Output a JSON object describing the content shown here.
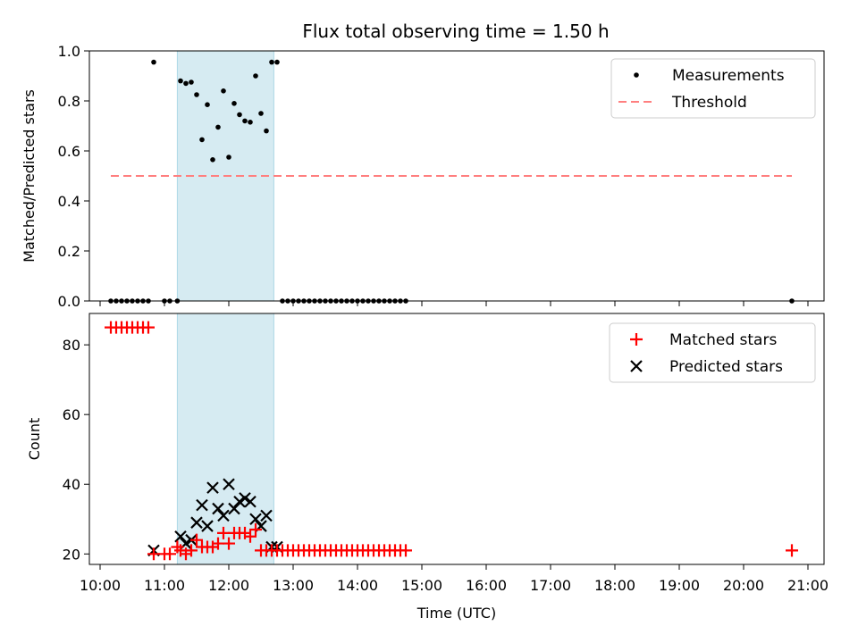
{
  "chart_data": {
    "title": "Flux total observing time = 1.50 h",
    "xlabel": "Time (UTC)",
    "x_ticks": [
      "10:00",
      "11:00",
      "12:00",
      "13:00",
      "14:00",
      "15:00",
      "16:00",
      "17:00",
      "18:00",
      "19:00",
      "20:00",
      "21:00"
    ],
    "xlim": [
      "09:50",
      "21:15"
    ],
    "shaded_interval": [
      "11:12",
      "12:42"
    ],
    "colors": {
      "shade": "#add8e6",
      "measure": "#000000",
      "threshold": "#ff7f7f",
      "matched": "#ff0000",
      "predicted": "#000000"
    },
    "panels": [
      {
        "type": "scatter",
        "ylabel": "Matched/Predicted stars",
        "ylim": [
          0,
          1.0
        ],
        "y_ticks": [
          "0.0",
          "0.2",
          "0.4",
          "0.6",
          "0.8",
          "1.0"
        ],
        "legend": {
          "position": "top-right",
          "entries": [
            "Measurements",
            "Threshold"
          ]
        },
        "series": [
          {
            "name": "Measurements",
            "marker": "dot",
            "points": [
              [
                "10:10",
                0
              ],
              [
                "10:15",
                0
              ],
              [
                "10:20",
                0
              ],
              [
                "10:25",
                0
              ],
              [
                "10:30",
                0
              ],
              [
                "10:35",
                0
              ],
              [
                "10:40",
                0
              ],
              [
                "10:45",
                0
              ],
              [
                "10:50",
                0.955
              ],
              [
                "11:00",
                0
              ],
              [
                "11:05",
                0
              ],
              [
                "11:12",
                0
              ],
              [
                "11:15",
                0.88
              ],
              [
                "11:20",
                0.87
              ],
              [
                "11:25",
                0.875
              ],
              [
                "11:30",
                0.825
              ],
              [
                "11:35",
                0.645
              ],
              [
                "11:40",
                0.785
              ],
              [
                "11:45",
                0.565
              ],
              [
                "11:50",
                0.695
              ],
              [
                "11:55",
                0.84
              ],
              [
                "12:00",
                0.575
              ],
              [
                "12:05",
                0.79
              ],
              [
                "12:10",
                0.745
              ],
              [
                "12:15",
                0.72
              ],
              [
                "12:20",
                0.715
              ],
              [
                "12:25",
                0.9
              ],
              [
                "12:30",
                0.75
              ],
              [
                "12:35",
                0.68
              ],
              [
                "12:40",
                0.955
              ],
              [
                "12:45",
                0.955
              ],
              [
                "12:50",
                0
              ],
              [
                "12:55",
                0
              ],
              [
                "13:00",
                0
              ],
              [
                "13:05",
                0
              ],
              [
                "13:10",
                0
              ],
              [
                "13:15",
                0
              ],
              [
                "13:20",
                0
              ],
              [
                "13:25",
                0
              ],
              [
                "13:30",
                0
              ],
              [
                "13:35",
                0
              ],
              [
                "13:40",
                0
              ],
              [
                "13:45",
                0
              ],
              [
                "13:50",
                0
              ],
              [
                "13:55",
                0
              ],
              [
                "14:00",
                0
              ],
              [
                "14:05",
                0
              ],
              [
                "14:10",
                0
              ],
              [
                "14:15",
                0
              ],
              [
                "14:20",
                0
              ],
              [
                "14:25",
                0
              ],
              [
                "14:30",
                0
              ],
              [
                "14:35",
                0
              ],
              [
                "14:40",
                0
              ],
              [
                "14:45",
                0
              ],
              [
                "20:45",
                0
              ]
            ]
          },
          {
            "name": "Threshold",
            "marker": "dashed-line",
            "x": [
              "10:10",
              "20:45"
            ],
            "y": 0.5
          }
        ]
      },
      {
        "type": "scatter",
        "ylabel": "Count",
        "ylim": [
          17,
          89
        ],
        "y_ticks": [
          20,
          40,
          60,
          80
        ],
        "legend": {
          "position": "top-right",
          "entries": [
            "Matched stars",
            "Predicted stars"
          ]
        },
        "series": [
          {
            "name": "Matched stars",
            "marker": "plus",
            "points": [
              [
                "10:10",
                85
              ],
              [
                "10:15",
                85
              ],
              [
                "10:20",
                85
              ],
              [
                "10:25",
                85
              ],
              [
                "10:30",
                85
              ],
              [
                "10:35",
                85
              ],
              [
                "10:40",
                85
              ],
              [
                "10:45",
                85
              ],
              [
                "10:50",
                20
              ],
              [
                "11:00",
                20
              ],
              [
                "11:05",
                20
              ],
              [
                "11:12",
                22
              ],
              [
                "11:15",
                21
              ],
              [
                "11:20",
                20
              ],
              [
                "11:25",
                21
              ],
              [
                "11:30",
                24
              ],
              [
                "11:35",
                22
              ],
              [
                "11:40",
                22
              ],
              [
                "11:45",
                22
              ],
              [
                "11:50",
                23
              ],
              [
                "11:55",
                26
              ],
              [
                "12:00",
                23
              ],
              [
                "12:05",
                26
              ],
              [
                "12:10",
                26
              ],
              [
                "12:15",
                26
              ],
              [
                "12:20",
                25
              ],
              [
                "12:25",
                27
              ],
              [
                "12:30",
                21
              ],
              [
                "12:35",
                21
              ],
              [
                "12:40",
                21
              ],
              [
                "12:45",
                21
              ],
              [
                "12:50",
                21
              ],
              [
                "12:55",
                21
              ],
              [
                "13:00",
                21
              ],
              [
                "13:05",
                21
              ],
              [
                "13:10",
                21
              ],
              [
                "13:15",
                21
              ],
              [
                "13:20",
                21
              ],
              [
                "13:25",
                21
              ],
              [
                "13:30",
                21
              ],
              [
                "13:35",
                21
              ],
              [
                "13:40",
                21
              ],
              [
                "13:45",
                21
              ],
              [
                "13:50",
                21
              ],
              [
                "13:55",
                21
              ],
              [
                "14:00",
                21
              ],
              [
                "14:05",
                21
              ],
              [
                "14:10",
                21
              ],
              [
                "14:15",
                21
              ],
              [
                "14:20",
                21
              ],
              [
                "14:25",
                21
              ],
              [
                "14:30",
                21
              ],
              [
                "14:35",
                21
              ],
              [
                "14:40",
                21
              ],
              [
                "14:45",
                21
              ],
              [
                "20:45",
                21
              ]
            ]
          },
          {
            "name": "Predicted stars",
            "marker": "cross",
            "points": [
              [
                "10:50",
                21
              ],
              [
                "11:15",
                25
              ],
              [
                "11:20",
                23
              ],
              [
                "11:25",
                24
              ],
              [
                "11:30",
                29
              ],
              [
                "11:35",
                34
              ],
              [
                "11:40",
                28
              ],
              [
                "11:45",
                39
              ],
              [
                "11:50",
                33
              ],
              [
                "11:55",
                31
              ],
              [
                "12:00",
                40
              ],
              [
                "12:05",
                33
              ],
              [
                "12:10",
                35
              ],
              [
                "12:15",
                36
              ],
              [
                "12:20",
                35
              ],
              [
                "12:25",
                30
              ],
              [
                "12:30",
                28
              ],
              [
                "12:35",
                31
              ],
              [
                "12:40",
                22
              ],
              [
                "12:45",
                22
              ]
            ]
          }
        ]
      }
    ]
  }
}
